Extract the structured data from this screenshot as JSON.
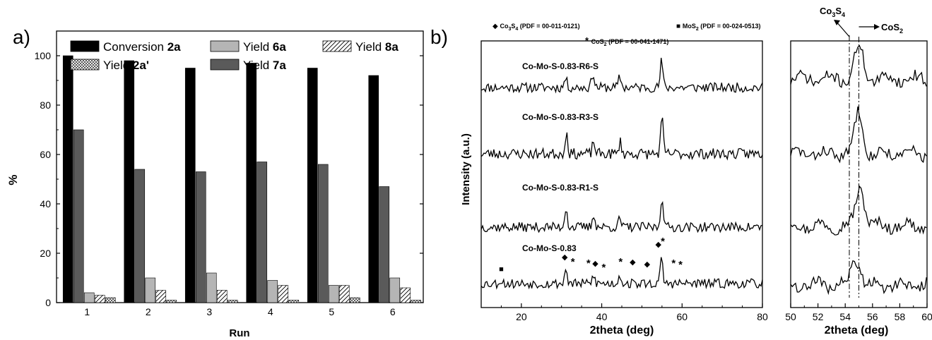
{
  "chart_data": [
    {
      "type": "bar",
      "panel_label": "a)",
      "xlabel": "Run",
      "ylabel": "%",
      "ylim": [
        0,
        110
      ],
      "yticks": [
        0,
        20,
        40,
        60,
        80,
        100
      ],
      "grid": false,
      "legend_position": "top",
      "categories": [
        "1",
        "2",
        "3",
        "4",
        "5",
        "6"
      ],
      "series": [
        {
          "name": "Conversion",
          "name_bold": "2a",
          "fill": "#000000",
          "pattern": "solid",
          "values": [
            100,
            98,
            95,
            97,
            95,
            92
          ]
        },
        {
          "name": "Yield",
          "name_bold": "7a",
          "fill": "#5a5a5a",
          "pattern": "solid",
          "values": [
            70,
            54,
            53,
            57,
            56,
            47
          ]
        },
        {
          "name": "Yield",
          "name_bold": "6a",
          "fill": "#b5b5b5",
          "pattern": "solid",
          "values": [
            4,
            10,
            12,
            9,
            7,
            10
          ]
        },
        {
          "name": "Yield",
          "name_bold": "8a",
          "fill": "#ffffff",
          "pattern": "hatch",
          "values": [
            3,
            5,
            5,
            7,
            7,
            6
          ]
        },
        {
          "name": "Yield",
          "name_bold": "2a'",
          "fill": "#ffffff",
          "pattern": "crosshatch",
          "values": [
            2,
            1,
            1,
            1,
            2,
            1
          ]
        }
      ],
      "legend_order": [
        0,
        2,
        3,
        4,
        1
      ]
    },
    {
      "type": "line",
      "panel_label": "b)",
      "xlabel": "2theta (deg)",
      "ylabel": "Intensity (a.u.)",
      "xlim": [
        10,
        80
      ],
      "xticks": [
        20,
        40,
        60,
        80
      ],
      "grid": false,
      "legend_items": [
        {
          "marker": "diamond",
          "label": "Co",
          "s1": "3",
          "m": "S",
          "s2": "4",
          "ref": " (PDF = 00-011-0121)"
        },
        {
          "marker": "square",
          "label": "MoS",
          "s1": "2",
          "m": "",
          "s2": "",
          "ref": " (PDF = 00-024-0513)"
        },
        {
          "marker": "asterisk",
          "label": "CoS",
          "s1": "2",
          "m": "",
          "s2": "",
          "ref": " (PDF = 00-041-1471)"
        }
      ],
      "series": [
        {
          "name": "Co-Mo-S-0.83-R6-S",
          "peaks": [
            [
              31,
              0.35
            ],
            [
              37.8,
              0.55
            ],
            [
              44.5,
              0.4
            ],
            [
              54.9,
              1.0
            ]
          ],
          "noise": 0.18,
          "seed": 11
        },
        {
          "name": "Co-Mo-S-0.83-R3-S",
          "peaks": [
            [
              31.2,
              0.8
            ],
            [
              38,
              0.45
            ],
            [
              44.6,
              0.45
            ],
            [
              55,
              1.3
            ]
          ],
          "noise": 0.2,
          "seed": 23
        },
        {
          "name": "Co-Mo-S-0.83-R1-S",
          "peaks": [
            [
              31.1,
              0.75
            ],
            [
              38,
              0.5
            ],
            [
              44.5,
              0.3
            ],
            [
              55,
              1.2
            ]
          ],
          "noise": 0.18,
          "seed": 37
        },
        {
          "name": "Co-Mo-S-0.83",
          "peaks": [
            [
              15,
              0.15
            ],
            [
              31.1,
              0.55
            ],
            [
              38,
              0.3
            ],
            [
              44.5,
              0.35
            ],
            [
              54.9,
              0.9
            ]
          ],
          "noise": 0.18,
          "seed": 53
        }
      ],
      "markers_on_bottom": [
        {
          "symbol": "■",
          "x": 15
        },
        {
          "symbol": "◆",
          "x": 30.8
        },
        {
          "symbol": "*",
          "x": 32.8
        },
        {
          "symbol": "*",
          "x": 36.7
        },
        {
          "symbol": "◆",
          "x": 38.4
        },
        {
          "symbol": "*",
          "x": 40.5
        },
        {
          "symbol": "*",
          "x": 44.7
        },
        {
          "symbol": "◆",
          "x": 47.7
        },
        {
          "symbol": "◆",
          "x": 51.3
        },
        {
          "symbol": "◆",
          "x": 54.1
        },
        {
          "symbol": "*",
          "x": 55.2
        },
        {
          "symbol": "*",
          "x": 57.9
        },
        {
          "symbol": "*",
          "x": 59.6
        }
      ]
    },
    {
      "type": "line",
      "xlabel": "2theta (deg)",
      "xlim": [
        50,
        60
      ],
      "xticks": [
        50,
        52,
        54,
        56,
        58,
        60
      ],
      "grid": false,
      "reference_lines": [
        {
          "label_main": "Co",
          "label_s1": "3",
          "label_m": "S",
          "label_s2": "4",
          "x": 54.3
        },
        {
          "label_main": "CoS",
          "label_s1": "2",
          "label_m": "",
          "label_s2": "",
          "x": 55
        }
      ],
      "series": [
        {
          "name": "Co-Mo-S-0.83-R6-S",
          "peak": 55,
          "height": 1.0,
          "seed": 71
        },
        {
          "name": "Co-Mo-S-0.83-R3-S",
          "peak": 55,
          "height": 1.3,
          "seed": 83
        },
        {
          "name": "Co-Mo-S-0.83-R1-S",
          "peak": 55.1,
          "height": 1.2,
          "seed": 97
        },
        {
          "name": "Co-Mo-S-0.83",
          "peak": 54.8,
          "height": 0.85,
          "seed": 109
        }
      ]
    }
  ]
}
